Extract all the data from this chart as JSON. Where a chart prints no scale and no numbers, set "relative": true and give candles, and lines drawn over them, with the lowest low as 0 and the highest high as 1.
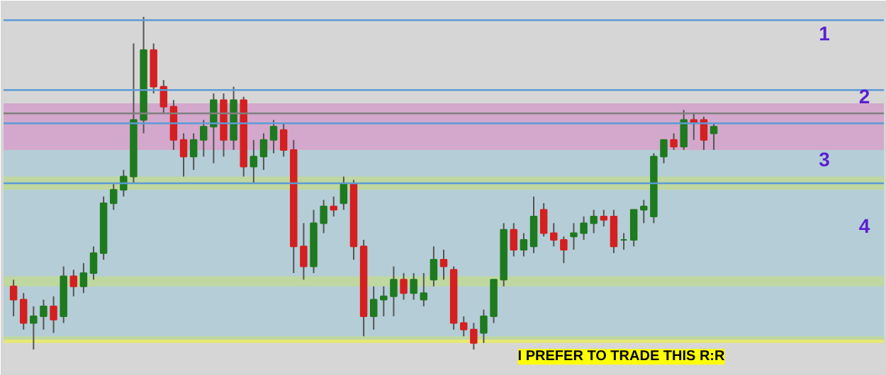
{
  "chart_data": {
    "type": "candlestick",
    "relative": true,
    "categories": [
      null,
      null,
      null,
      null,
      null,
      null,
      null,
      null,
      null,
      null,
      null,
      null,
      null,
      null,
      null,
      null,
      null,
      null,
      null,
      null,
      null,
      null,
      null,
      null,
      null,
      null,
      null,
      null,
      null,
      null,
      null,
      null,
      null,
      null,
      null,
      null,
      null,
      null,
      null,
      null,
      null,
      null,
      null,
      null,
      null,
      null,
      null,
      null,
      null,
      null,
      null,
      null,
      null,
      null,
      null,
      null,
      null,
      null,
      null,
      null,
      null,
      null,
      null,
      null,
      null,
      null,
      null,
      null,
      null,
      null,
      null
    ],
    "ohlc": [
      [
        0.19,
        0.21,
        0.1,
        0.15
      ],
      [
        0.15,
        0.17,
        0.06,
        0.08
      ],
      [
        0.08,
        0.13,
        0,
        0.1
      ],
      [
        0.1,
        0.15,
        0.06,
        0.13
      ],
      [
        0.13,
        0.16,
        0.05,
        0.09
      ],
      [
        0.1,
        0.25,
        0.08,
        0.22
      ],
      [
        0.22,
        0.24,
        0.16,
        0.19
      ],
      [
        0.19,
        0.26,
        0.17,
        0.23
      ],
      [
        0.23,
        0.31,
        0.21,
        0.29
      ],
      [
        0.29,
        0.46,
        0.27,
        0.44
      ],
      [
        0.44,
        0.5,
        0.42,
        0.48
      ],
      [
        0.48,
        0.54,
        0.46,
        0.52
      ],
      [
        0.52,
        0.92,
        0.5,
        0.69
      ],
      [
        0.69,
        1.0,
        0.65,
        0.9
      ],
      [
        0.9,
        0.92,
        0.77,
        0.79
      ],
      [
        0.79,
        0.81,
        0.71,
        0.73
      ],
      [
        0.73,
        0.75,
        0.6,
        0.63
      ],
      [
        0.63,
        0.65,
        0.52,
        0.58
      ],
      [
        0.58,
        0.65,
        0.54,
        0.63
      ],
      [
        0.63,
        0.69,
        0.58,
        0.67
      ],
      [
        0.67,
        0.77,
        0.56,
        0.75
      ],
      [
        0.75,
        0.77,
        0.58,
        0.63
      ],
      [
        0.63,
        0.79,
        0.6,
        0.75
      ],
      [
        0.75,
        0.76,
        0.52,
        0.55
      ],
      [
        0.55,
        0.63,
        0.5,
        0.58
      ],
      [
        0.58,
        0.65,
        0.54,
        0.63
      ],
      [
        0.63,
        0.69,
        0.59,
        0.67
      ],
      [
        0.66,
        0.68,
        0.58,
        0.6
      ],
      [
        0.6,
        0.63,
        0.23,
        0.31
      ],
      [
        0.31,
        0.38,
        0.21,
        0.25
      ],
      [
        0.25,
        0.42,
        0.23,
        0.38
      ],
      [
        0.38,
        0.45,
        0.35,
        0.43
      ],
      [
        0.43,
        0.46,
        0.4,
        0.42
      ],
      [
        0.44,
        0.52,
        0.42,
        0.5
      ],
      [
        0.5,
        0.51,
        0.27,
        0.31
      ],
      [
        0.31,
        0.33,
        0.04,
        0.1
      ],
      [
        0.1,
        0.19,
        0.06,
        0.15
      ],
      [
        0.15,
        0.19,
        0.1,
        0.16
      ],
      [
        0.16,
        0.25,
        0.1,
        0.21
      ],
      [
        0.21,
        0.23,
        0.15,
        0.17
      ],
      [
        0.17,
        0.23,
        0.15,
        0.21
      ],
      [
        0.15,
        0.23,
        0.13,
        0.17
      ],
      [
        0.21,
        0.31,
        0.19,
        0.27
      ],
      [
        0.27,
        0.3,
        0.21,
        0.25
      ],
      [
        0.24,
        0.25,
        0.06,
        0.08
      ],
      [
        0.08,
        0.1,
        0.04,
        0.06
      ],
      [
        0.06,
        0.08,
        0,
        0.02
      ],
      [
        0.05,
        0.12,
        0.02,
        0.1
      ],
      [
        0.1,
        0.21,
        0.08,
        0.21
      ],
      [
        0.21,
        0.38,
        0.19,
        0.36
      ],
      [
        0.36,
        0.38,
        0.28,
        0.3
      ],
      [
        0.3,
        0.35,
        0.28,
        0.33
      ],
      [
        0.31,
        0.46,
        0.29,
        0.4
      ],
      [
        0.42,
        0.44,
        0.34,
        0.35
      ],
      [
        0.35,
        0.38,
        0.31,
        0.33
      ],
      [
        0.33,
        0.34,
        0.26,
        0.3
      ],
      [
        0.34,
        0.38,
        0.3,
        0.35
      ],
      [
        0.35,
        0.4,
        0.33,
        0.38
      ],
      [
        0.38,
        0.42,
        0.35,
        0.4
      ],
      [
        0.4,
        0.42,
        0.37,
        0.39
      ],
      [
        0.4,
        0.42,
        0.29,
        0.31
      ],
      [
        0.33,
        0.35,
        0.3,
        0.33
      ],
      [
        0.33,
        0.42,
        0.31,
        0.42
      ],
      [
        0.42,
        0.45,
        0.38,
        0.43
      ],
      [
        0.4,
        0.59,
        0.38,
        0.58
      ],
      [
        0.58,
        0.63,
        0.56,
        0.63
      ],
      [
        0.63,
        0.65,
        0.6,
        0.61
      ],
      [
        0.61,
        0.72,
        0.6,
        0.69
      ],
      [
        0.69,
        0.71,
        0.63,
        0.68
      ],
      [
        0.69,
        0.7,
        0.6,
        0.63
      ],
      [
        0.65,
        0.68,
        0.6,
        0.67
      ]
    ],
    "colors": [
      "#d42020",
      "#d42020",
      "#1e7a1e",
      "#1e7a1e",
      "#d42020",
      "#1e7a1e",
      "#d42020",
      "#1e7a1e",
      "#1e7a1e",
      "#1e7a1e",
      "#1e7a1e",
      "#1e7a1e",
      "#1e7a1e",
      "#1e7a1e",
      "#d42020",
      "#d42020",
      "#d42020",
      "#d42020",
      "#1e7a1e",
      "#1e7a1e",
      "#1e7a1e",
      "#d42020",
      "#1e7a1e",
      "#d42020",
      "#1e7a1e",
      "#1e7a1e",
      "#1e7a1e",
      "#d42020",
      "#d42020",
      "#d42020",
      "#1e7a1e",
      "#1e7a1e",
      "#d42020",
      "#1e7a1e",
      "#d42020",
      "#d42020",
      "#1e7a1e",
      "#1e7a1e",
      "#1e7a1e",
      "#d42020",
      "#1e7a1e",
      "#1e7a1e",
      "#1e7a1e",
      "#d42020",
      "#d42020",
      "#d42020",
      "#d42020",
      "#1e7a1e",
      "#1e7a1e",
      "#1e7a1e",
      "#d42020",
      "#1e7a1e",
      "#1e7a1e",
      "#d42020",
      "#d42020",
      "#d42020",
      "#1e7a1e",
      "#1e7a1e",
      "#1e7a1e",
      "#d42020",
      "#d42020",
      "#1e7a1e",
      "#1e7a1e",
      "#1e7a1e",
      "#1e7a1e",
      "#1e7a1e",
      "#d42020",
      "#1e7a1e",
      "#d42020",
      "#d42020",
      "#1e7a1e"
    ],
    "ref_lines": [
      {
        "axis": "y",
        "value": 0.99,
        "color": "#5b9bd5"
      },
      {
        "axis": "y",
        "value": 0.78,
        "color": "#5b9bd5"
      },
      {
        "axis": "y",
        "value": 0.71,
        "color": "#808080"
      },
      {
        "axis": "y",
        "value": 0.68,
        "color": "#5b9bd5"
      },
      {
        "axis": "y",
        "value": 0.5,
        "color": "#5b9bd5"
      }
    ],
    "bands": [
      {
        "axis": "y",
        "from": 0.48,
        "to": 0.52,
        "color": "#ffff00"
      },
      {
        "axis": "y",
        "from": 0.19,
        "to": 0.22,
        "color": "#ffff00"
      },
      {
        "axis": "y",
        "from": 0.02,
        "to": 0.04,
        "color": "#ffff00"
      },
      {
        "axis": "y",
        "from": 0.6,
        "to": 0.74,
        "color": "#d070c0"
      },
      {
        "axis": "y",
        "from": 0.03,
        "to": 0.6,
        "color": "#8fc3d8"
      }
    ],
    "annotations": [
      "I PREFER TO TRADE THIS R:R",
      "1",
      "2",
      "3",
      "4"
    ]
  }
}
